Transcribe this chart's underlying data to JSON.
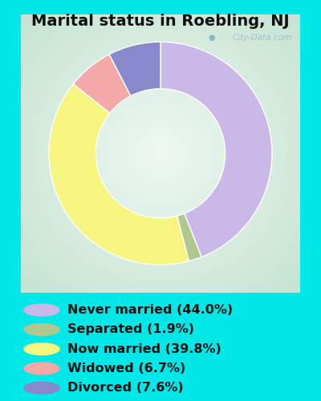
{
  "title": "Marital status in Roebling, NJ",
  "slices": [
    44.0,
    1.9,
    39.8,
    6.7,
    7.6
  ],
  "labels": [
    "Never married (44.0%)",
    "Separated (1.9%)",
    "Now married (39.8%)",
    "Widowed (6.7%)",
    "Divorced (7.6%)"
  ],
  "colors": [
    "#c9b8e8",
    "#b0c890",
    "#f5f580",
    "#f4a8a8",
    "#8888cc"
  ],
  "bg_cyan": "#00e8e8",
  "chart_bg_outer": "#b8ddc8",
  "chart_bg_inner": "#e8f5ee",
  "title_fontsize": 14,
  "legend_fontsize": 11.5,
  "watermark": "City-Data.com",
  "start_angle": 90,
  "donut_width": 0.42
}
